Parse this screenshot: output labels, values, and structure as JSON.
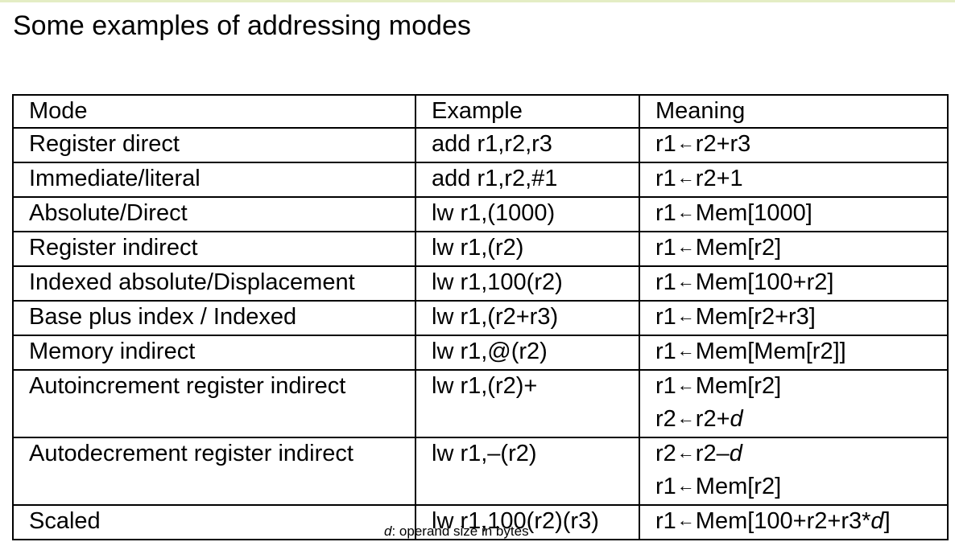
{
  "title": "Some examples of addressing modes",
  "table": {
    "headers": [
      "Mode",
      "Example",
      "Meaning"
    ],
    "rows": [
      {
        "mode": "Register direct",
        "example": "add r1,r2,r3",
        "meaning": [
          "r1←r2+r3"
        ]
      },
      {
        "mode": "Immediate/literal",
        "example": "add r1,r2,#1",
        "meaning": [
          "r1←r2+1"
        ]
      },
      {
        "mode": "Absolute/Direct",
        "example": "lw r1,(1000)",
        "meaning": [
          "r1←Mem[1000]"
        ]
      },
      {
        "mode": "Register indirect",
        "example": "lw r1,(r2)",
        "meaning": [
          "r1←Mem[r2]"
        ]
      },
      {
        "mode": "Indexed absolute/Displacement",
        "example": "lw r1,100(r2)",
        "meaning": [
          "r1←Mem[100+r2]"
        ]
      },
      {
        "mode": "Base plus index / Indexed",
        "example": "lw r1,(r2+r3)",
        "meaning": [
          "r1←Mem[r2+r3]"
        ]
      },
      {
        "mode": "Memory indirect",
        "example": "lw r1,@(r2)",
        "meaning": [
          "r1←Mem[Mem[r2]]"
        ]
      },
      {
        "mode": "Autoincrement register indirect",
        "example": "lw r1,(r2)+",
        "meaning": [
          "r1←Mem[r2]",
          "r2←r2+d"
        ]
      },
      {
        "mode": "Autodecrement register indirect",
        "example": "lw r1,–(r2)",
        "meaning": [
          "r2←r2–d",
          "r1←Mem[r2]"
        ]
      },
      {
        "mode": "Scaled",
        "example": "lw r1,100(r2)(r3)",
        "meaning": [
          "r1←Mem[100+r2+r3*d]"
        ]
      }
    ]
  },
  "footnote": "d: operand size in bytes"
}
